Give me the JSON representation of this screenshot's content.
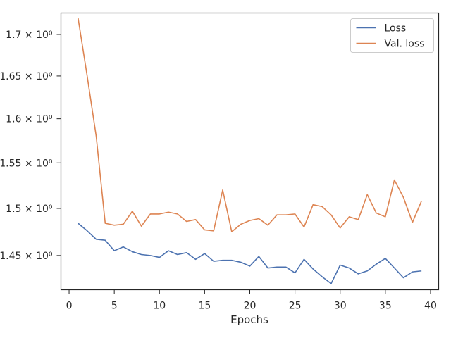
{
  "chart_data": {
    "type": "line",
    "title": "",
    "xlabel": "Epochs",
    "ylabel": "",
    "yscale": "log",
    "xlim": [
      -0.9,
      40.9
    ],
    "ylim": [
      1.4147,
      1.7265
    ],
    "xticks": [
      0,
      5,
      10,
      15,
      20,
      25,
      30,
      35,
      40
    ],
    "xtick_labels": [
      "0",
      "5",
      "10",
      "15",
      "20",
      "25",
      "30",
      "35",
      "40"
    ],
    "yticks": [
      1.45,
      1.5,
      1.55,
      1.6,
      1.65,
      1.7
    ],
    "ytick_labels": [
      "1.45 × 10⁰",
      "1.5 × 10⁰",
      "1.55 × 10⁰",
      "1.6 × 10⁰",
      "1.65 × 10⁰",
      "1.7 × 10⁰"
    ],
    "grid": false,
    "legend_position": "top-right",
    "x": [
      1,
      2,
      3,
      4,
      5,
      6,
      7,
      8,
      9,
      10,
      11,
      12,
      13,
      14,
      15,
      16,
      17,
      18,
      19,
      20,
      21,
      22,
      23,
      24,
      25,
      26,
      27,
      28,
      29,
      30,
      31,
      32,
      33,
      34,
      35,
      36,
      37,
      38,
      39
    ],
    "series": [
      {
        "name": "Loss",
        "color": "#4c72b0",
        "values": [
          1.484,
          1.476,
          1.467,
          1.466,
          1.455,
          1.459,
          1.454,
          1.451,
          1.45,
          1.448,
          1.455,
          1.451,
          1.453,
          1.446,
          1.452,
          1.444,
          1.445,
          1.445,
          1.443,
          1.439,
          1.449,
          1.437,
          1.438,
          1.438,
          1.432,
          1.446,
          1.436,
          1.428,
          1.421,
          1.44,
          1.437,
          1.431,
          1.434,
          1.441,
          1.447,
          1.437,
          1.427,
          1.433,
          1.434
        ]
      },
      {
        "name": "Val. loss",
        "color": "#dd8452",
        "values": [
          1.72,
          1.65,
          1.58,
          1.484,
          1.482,
          1.483,
          1.497,
          1.481,
          1.494,
          1.494,
          1.496,
          1.494,
          1.486,
          1.488,
          1.477,
          1.476,
          1.52,
          1.475,
          1.483,
          1.487,
          1.489,
          1.482,
          1.493,
          1.493,
          1.494,
          1.48,
          1.504,
          1.502,
          1.493,
          1.479,
          1.491,
          1.488,
          1.515,
          1.495,
          1.491,
          1.531,
          1.512,
          1.485,
          1.508
        ]
      }
    ]
  }
}
